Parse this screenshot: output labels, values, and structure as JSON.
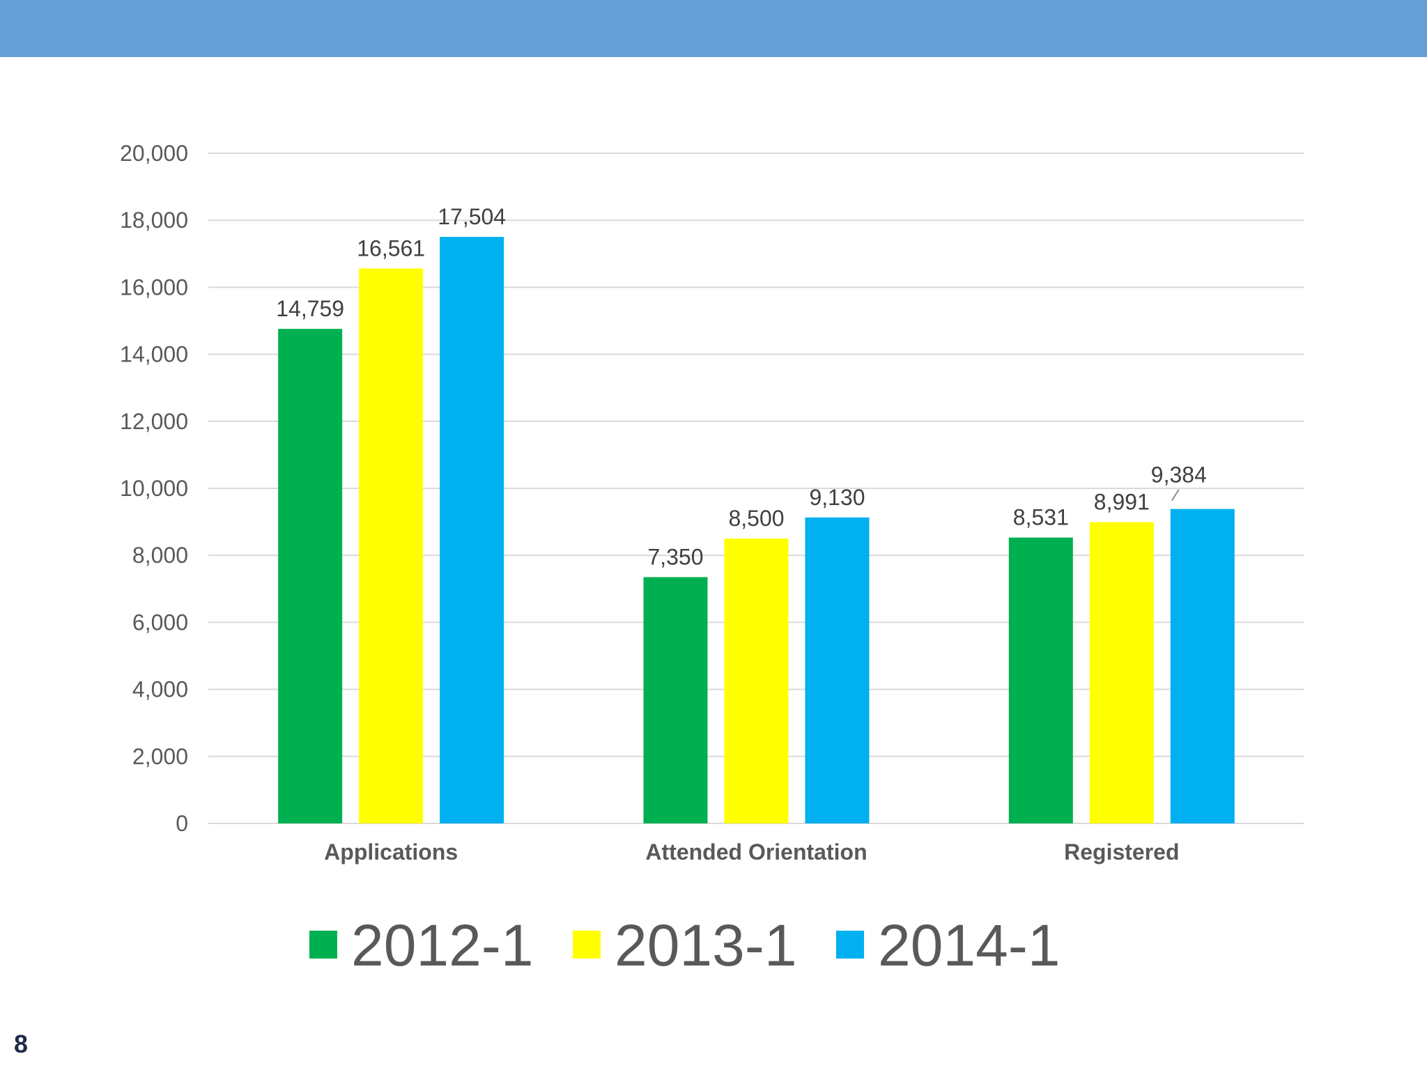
{
  "slide": {
    "number": "8"
  },
  "colors": {
    "banner": "#659fd5",
    "gridline": "#d9d9d9"
  },
  "chart_data": {
    "type": "bar",
    "title": "",
    "xlabel": "",
    "ylabel": "",
    "categories": [
      "Applications",
      "Attended Orientation",
      "Registered"
    ],
    "series": [
      {
        "name": "2012-1",
        "color": "#00b050",
        "values": [
          14759,
          7350,
          8531
        ],
        "labels": [
          "14,759",
          "7,350",
          "8,531"
        ]
      },
      {
        "name": "2013-1",
        "color": "#ffff00",
        "values": [
          16561,
          8500,
          8991
        ],
        "labels": [
          "16,561",
          "8,500",
          "8,991"
        ]
      },
      {
        "name": "2014-1",
        "color": "#00b0f0",
        "values": [
          17504,
          9130,
          9384
        ],
        "labels": [
          "17,504",
          "9,130",
          "9,384"
        ]
      }
    ],
    "ylim": [
      0,
      20000
    ],
    "yticks": [
      0,
      2000,
      4000,
      6000,
      8000,
      10000,
      12000,
      14000,
      16000,
      18000,
      20000
    ],
    "ytick_labels": [
      "0",
      "2,000",
      "4,000",
      "6,000",
      "8,000",
      "10,000",
      "12,000",
      "14,000",
      "16,000",
      "18,000",
      "20,000"
    ],
    "grid": true,
    "legend_position": "bottom"
  }
}
